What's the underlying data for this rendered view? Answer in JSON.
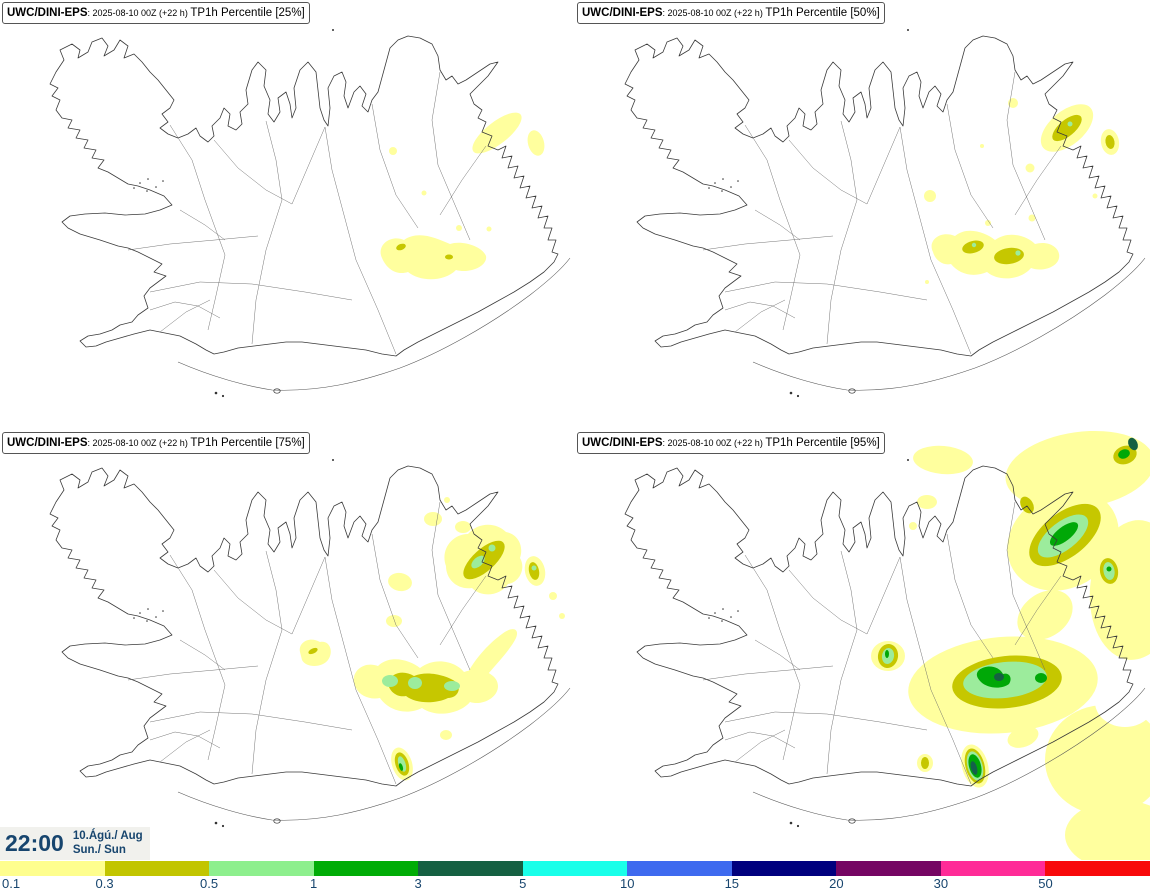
{
  "panels": [
    {
      "model": "UWC/DINI-EPS",
      "run": ": 2025-08-10 00Z (+22 h) ",
      "product": "TP1h Percentile [25%]",
      "percentile": "25%"
    },
    {
      "model": "UWC/DINI-EPS",
      "run": ": 2025-08-10 00Z (+22 h) ",
      "product": "TP1h Percentile [50%]",
      "percentile": "50%"
    },
    {
      "model": "UWC/DINI-EPS",
      "run": ": 2025-08-10 00Z (+22 h) ",
      "product": "TP1h Percentile [75%]",
      "percentile": "75%"
    },
    {
      "model": "UWC/DINI-EPS",
      "run": ": 2025-08-10 00Z (+22 h) ",
      "product": "TP1h Percentile [95%]",
      "percentile": "95%"
    }
  ],
  "timestamp": {
    "time": "22:00",
    "date": "10.Ágú./ Aug",
    "day": "Sun./ Sun"
  },
  "colorbar": {
    "labels": [
      "0.1",
      "0.3",
      "0.5",
      "1",
      "3",
      "5",
      "10",
      "15",
      "20",
      "30",
      "50"
    ],
    "colors": [
      "#FEFE8E",
      "#C2C500",
      "#8DEF8D",
      "#00AC06",
      "#156042",
      "#19FFE9",
      "#3E6AEF",
      "#00007E",
      "#750563",
      "#FF2B97",
      "#F8090B"
    ],
    "label_color": "#17456E"
  }
}
